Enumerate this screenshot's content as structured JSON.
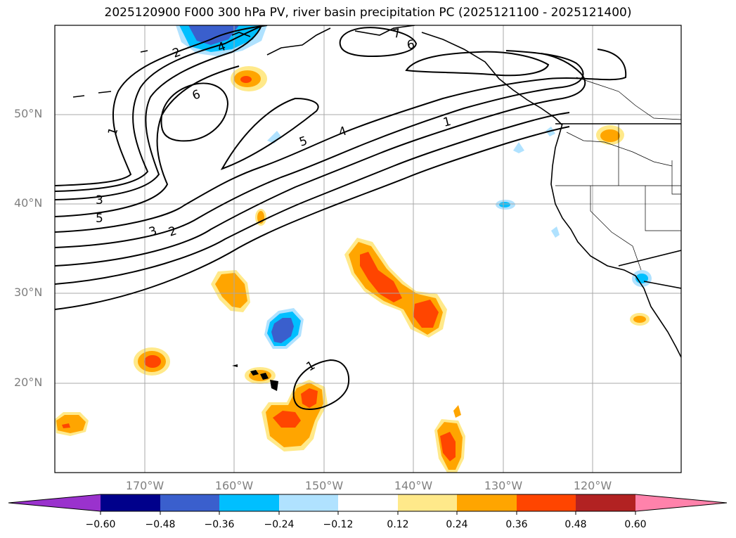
{
  "title": "2025120900 F000 300 hPa PV, river basin precipitation PC (2025121100 - 2025121400)",
  "lat_labels": [
    "50°N",
    "40°N",
    "30°N",
    "20°N"
  ],
  "lon_labels": [
    "170°W",
    "160°W",
    "150°W",
    "140°W",
    "130°W",
    "120°W"
  ],
  "pv_contour_labels": [
    "2",
    "4",
    "6",
    "1",
    "5",
    "4",
    "1",
    "7",
    "6",
    "3",
    "5",
    "3",
    "2",
    "1"
  ],
  "colorbar": {
    "ticks": [
      "−0.60",
      "−0.48",
      "−0.36",
      "−0.24",
      "−0.12",
      "0.12",
      "0.24",
      "0.36",
      "0.48",
      "0.60"
    ],
    "colors": [
      "#9a32cd",
      "#00008b",
      "#3a5fcd",
      "#00bfff",
      "#b0e2ff",
      "#ffffff",
      "#ffe98a",
      "#ffa500",
      "#ff4500",
      "#b22222",
      "#ff82ab"
    ]
  }
}
